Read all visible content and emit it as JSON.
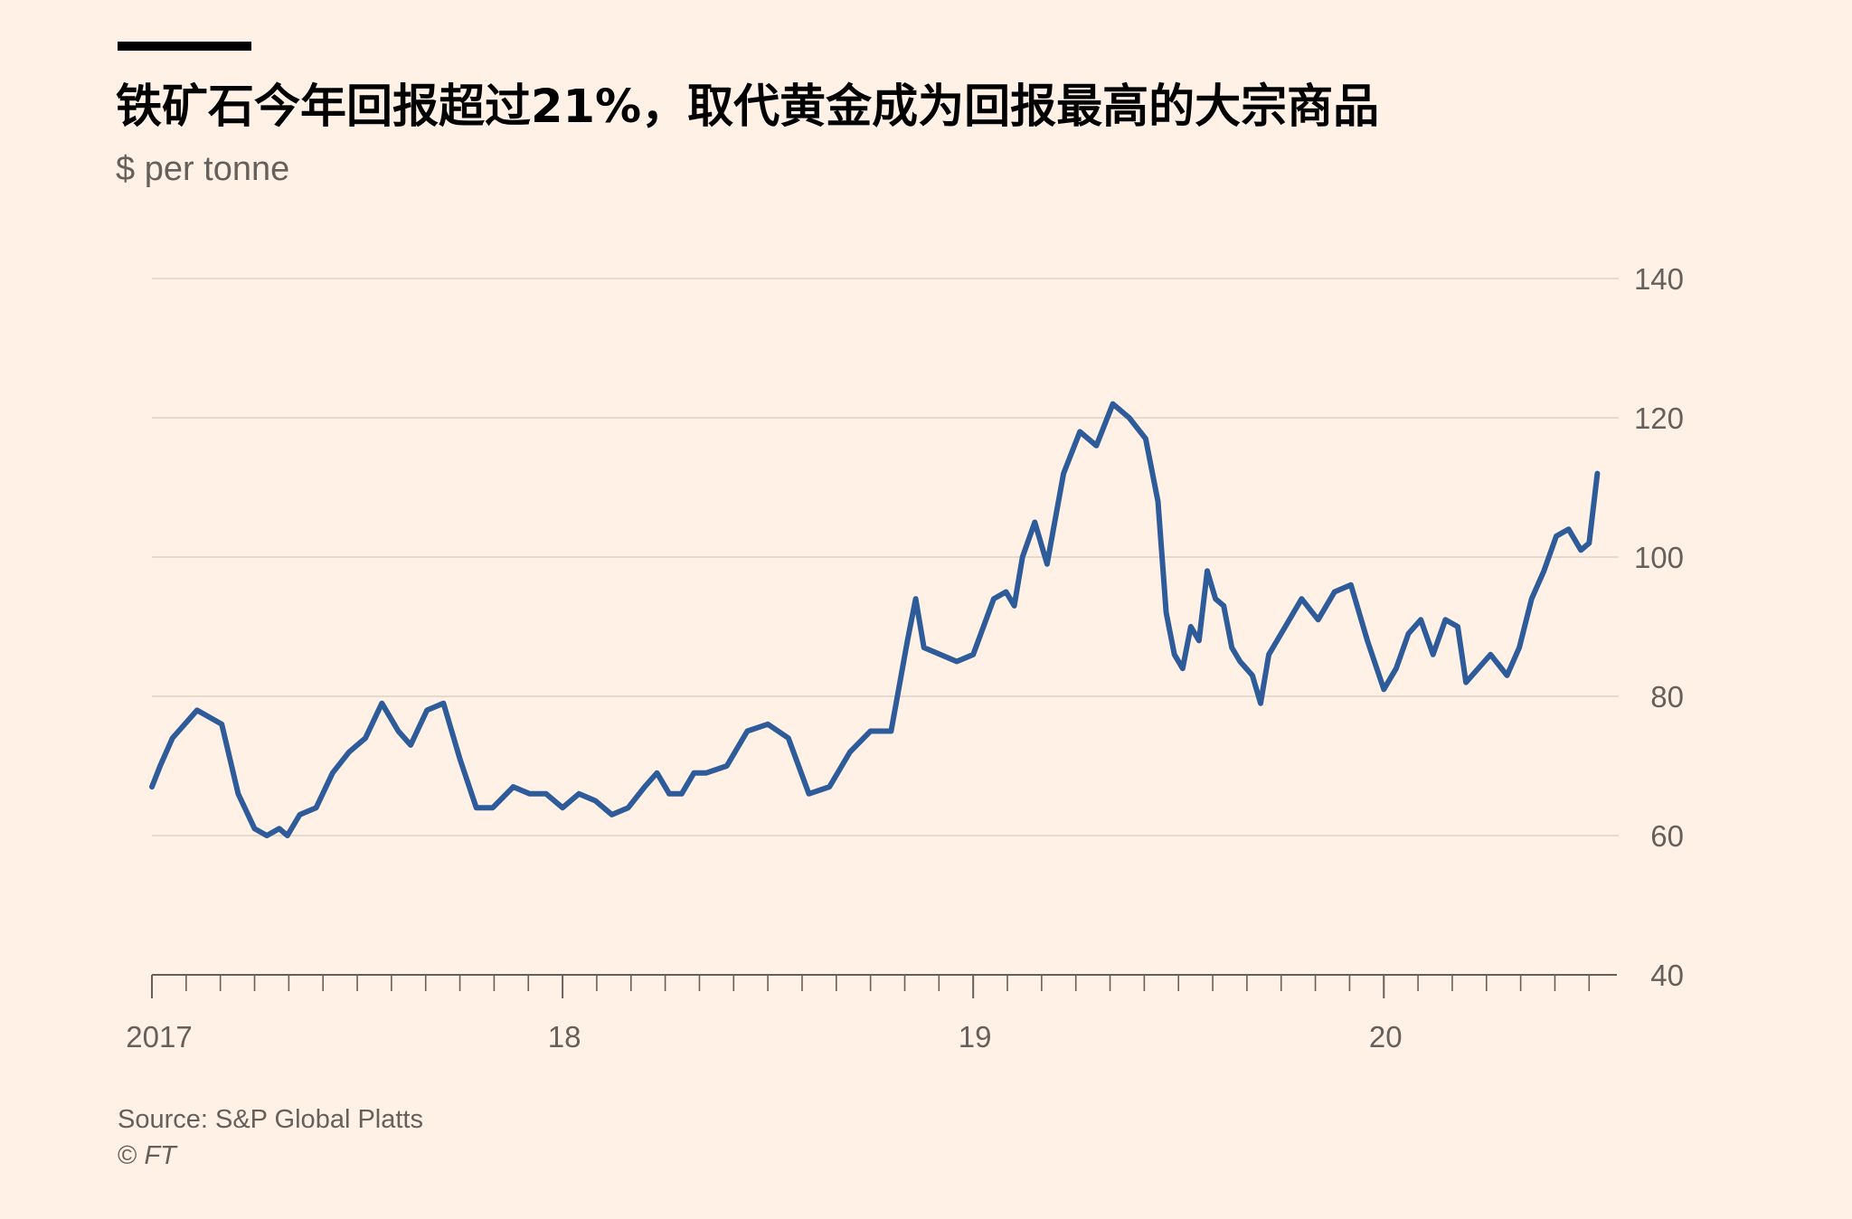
{
  "title": "铁矿石今年回报超过21%，取代黄金成为回报最高的大宗商品",
  "subtitle": "$ per tonne",
  "source": "Source: S&P Global Platts",
  "copyright_symbol": "©",
  "copyright_name": "FT",
  "colors": {
    "background": "#fff1e5",
    "line": "#2e5b9a",
    "grid": "#e6d9ce",
    "axis": "#66605c",
    "title": "#000000"
  },
  "chart_data": {
    "type": "line",
    "title": "铁矿石今年回报超过21%，取代黄金成为回报最高的大宗商品",
    "ylabel": "$ per tonne",
    "xlabel": "",
    "ylim": [
      40,
      140
    ],
    "xlim": [
      2017.0,
      2020.55
    ],
    "yticks": [
      40,
      60,
      80,
      100,
      120,
      140
    ],
    "ytick_labels": [
      "40",
      "60",
      "80",
      "100",
      "120",
      "140"
    ],
    "xticks": [
      2017.0,
      2018.0,
      2019.0,
      2020.0
    ],
    "xtick_labels": [
      "2017",
      "18",
      "19",
      "20"
    ],
    "grid": true,
    "y_axis_side": "right",
    "legend": "none",
    "series": [
      {
        "x": [
          2017.0,
          2017.02,
          2017.05,
          2017.08,
          2017.11,
          2017.14,
          2017.17,
          2017.21,
          2017.25,
          2017.28,
          2017.31,
          2017.33,
          2017.36,
          2017.4,
          2017.44,
          2017.48,
          2017.52,
          2017.56,
          2017.6,
          2017.63,
          2017.67,
          2017.71,
          2017.75,
          2017.79,
          2017.83,
          2017.88,
          2017.92,
          2017.96,
          2018.0,
          2018.04,
          2018.08,
          2018.12,
          2018.16,
          2018.2,
          2018.23,
          2018.26,
          2018.29,
          2018.32,
          2018.35,
          2018.4,
          2018.45,
          2018.5,
          2018.55,
          2018.6,
          2018.65,
          2018.7,
          2018.75,
          2018.8,
          2018.84,
          2018.86,
          2018.88,
          2018.92,
          2018.96,
          2019.0,
          2019.05,
          2019.08,
          2019.1,
          2019.12,
          2019.15,
          2019.18,
          2019.22,
          2019.26,
          2019.3,
          2019.34,
          2019.38,
          2019.42,
          2019.45,
          2019.47,
          2019.49,
          2019.51,
          2019.53,
          2019.55,
          2019.57,
          2019.59,
          2019.61,
          2019.63,
          2019.65,
          2019.68,
          2019.7,
          2019.72,
          2019.76,
          2019.8,
          2019.84,
          2019.88,
          2019.92,
          2019.96,
          2020.0,
          2020.03,
          2020.06,
          2020.09,
          2020.12,
          2020.15,
          2020.18,
          2020.2,
          2020.23,
          2020.26,
          2020.3,
          2020.33,
          2020.36,
          2020.39,
          2020.42,
          2020.45,
          2020.48,
          2020.5,
          2020.52
        ],
        "y": [
          67,
          70,
          74,
          76,
          78,
          77,
          76,
          66,
          61,
          60,
          61,
          60,
          63,
          64,
          69,
          72,
          74,
          79,
          75,
          73,
          78,
          79,
          71,
          64,
          64,
          67,
          66,
          66,
          64,
          66,
          65,
          63,
          64,
          67,
          69,
          66,
          66,
          69,
          69,
          70,
          75,
          76,
          74,
          66,
          67,
          72,
          75,
          75,
          88,
          94,
          87,
          86,
          85,
          86,
          94,
          95,
          93,
          100,
          105,
          99,
          112,
          118,
          116,
          122,
          120,
          117,
          108,
          92,
          86,
          84,
          90,
          88,
          98,
          94,
          93,
          87,
          85,
          83,
          79,
          86,
          90,
          94,
          91,
          95,
          96,
          88,
          81,
          84,
          89,
          91,
          86,
          91,
          90,
          82,
          84,
          86,
          83,
          87,
          94,
          98,
          103,
          104,
          101,
          102,
          112
        ]
      }
    ]
  }
}
